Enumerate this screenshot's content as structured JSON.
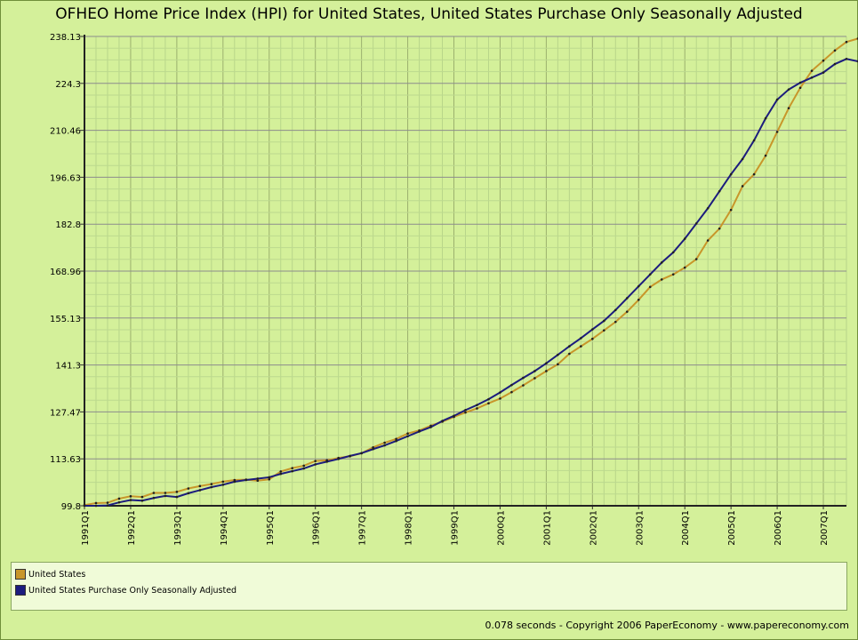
{
  "chart_data": {
    "type": "line",
    "title": "OFHEO Home Price Index (HPI) for United States, United States Purchase Only Seasonally Adjusted",
    "ylim": [
      99.8,
      238.13
    ],
    "y_ticks": [
      "238.13",
      "224.3",
      "210.46",
      "196.63",
      "182.8",
      "168.96",
      "155.13",
      "141.3",
      "127.47",
      "113.63",
      "99.8"
    ],
    "x_tick_labels": [
      "1991Q1",
      "1992Q1",
      "1993Q1",
      "1994Q1",
      "1995Q1",
      "1996Q1",
      "1997Q1",
      "1998Q1",
      "1999Q1",
      "2000Q1",
      "2001Q1",
      "2002Q1",
      "2003Q1",
      "2004Q1",
      "2005Q1",
      "2006Q1",
      "2007Q1"
    ],
    "grid": true,
    "legend_position": "bottom",
    "series": [
      {
        "name": "United States",
        "color": "#c8962a",
        "values": [
          100.0,
          100.6,
          100.7,
          101.9,
          102.6,
          102.4,
          103.6,
          103.6,
          103.9,
          104.9,
          105.6,
          106.2,
          106.9,
          107.4,
          107.5,
          107.2,
          107.6,
          109.9,
          110.9,
          111.6,
          113.0,
          113.2,
          113.9,
          114.4,
          115.3,
          117.0,
          118.4,
          119.5,
          121.1,
          122.0,
          123.4,
          124.6,
          126.0,
          127.3,
          128.5,
          130.0,
          131.4,
          133.3,
          135.3,
          137.4,
          139.5,
          141.5,
          144.6,
          146.8,
          149.0,
          151.5,
          154.0,
          157.0,
          160.5,
          164.3,
          166.5,
          168.0,
          170.0,
          172.5,
          178.0,
          181.5,
          187.0,
          194.0,
          197.5,
          203.0,
          210.0,
          217.0,
          223.0,
          228.0,
          231.0,
          234.0,
          236.5,
          237.5,
          237.8,
          237.2
        ]
      },
      {
        "name": "United States Purchase Only Seasonally Adjusted",
        "color": "#1c1c7e",
        "values": [
          99.8,
          99.8,
          99.9,
          100.8,
          101.5,
          101.3,
          102.1,
          102.7,
          102.4,
          103.5,
          104.4,
          105.3,
          106.0,
          106.9,
          107.4,
          107.8,
          108.2,
          109.2,
          110.0,
          110.8,
          112.0,
          112.8,
          113.6,
          114.5,
          115.3,
          116.5,
          117.6,
          118.9,
          120.3,
          121.7,
          123.0,
          124.8,
          126.3,
          128.0,
          129.5,
          131.2,
          133.2,
          135.4,
          137.5,
          139.5,
          141.8,
          144.3,
          146.8,
          149.2,
          151.8,
          154.3,
          157.5,
          161.0,
          164.5,
          168.0,
          171.5,
          174.5,
          178.5,
          183.0,
          187.5,
          192.5,
          197.5,
          202.0,
          207.5,
          214.0,
          219.5,
          222.5,
          224.5,
          226.0,
          227.5,
          230.0,
          231.5,
          230.8
        ]
      }
    ]
  },
  "legend": {
    "items": [
      {
        "label": "United States",
        "color": "#c8962a"
      },
      {
        "label": "United States Purchase Only Seasonally Adjusted",
        "color": "#1c1c7e"
      }
    ]
  },
  "footer": "0.078 seconds - Copyright 2006 PaperEconomy - www.papereconomy.com"
}
